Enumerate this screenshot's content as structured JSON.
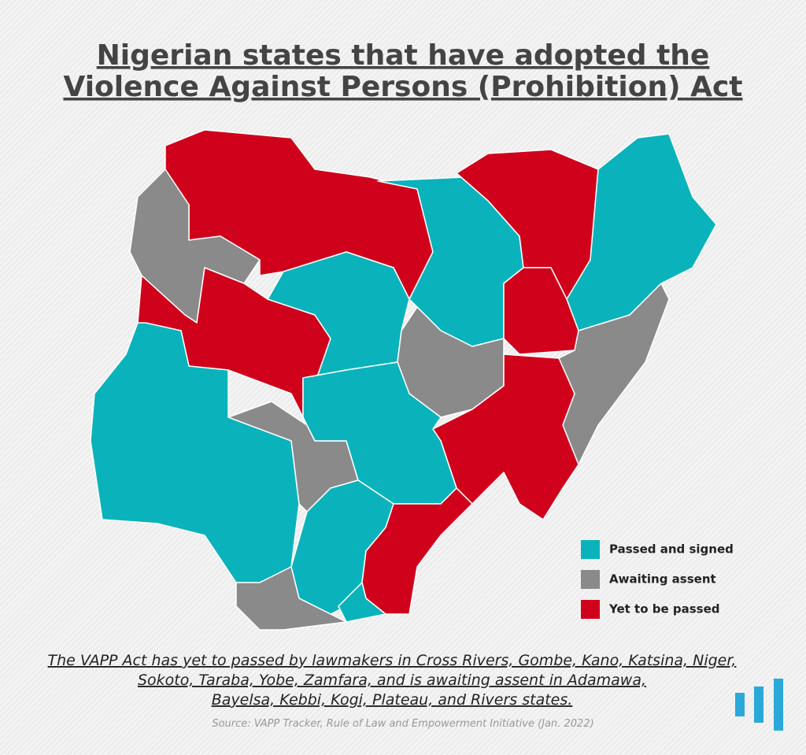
{
  "title": [
    "Nigerian states that have adopted the",
    "Violence Against Persons (Prohibition) Act"
  ],
  "legend": [
    {
      "label": "Passed and signed",
      "color": "#0ab3bb"
    },
    {
      "label": "Awaiting assent",
      "color": "#8a8a8a"
    },
    {
      "label": "Yet to be passed",
      "color": "#d0021b"
    }
  ],
  "caption": [
    "The VAPP Act has yet to passed by lawmakers in Cross Rivers, Gombe, Kano, Katsina, Niger,",
    "Sokoto, Taraba, Yobe, Zamfara, and is awaiting assent in Adamawa,",
    "Bayelsa, Kebbi, Kogi, Plateau, and Rivers states."
  ],
  "source": "Source: VAPP Tracker, Rule of Law and Empowerment Initiative (Jan. 2022)"
}
